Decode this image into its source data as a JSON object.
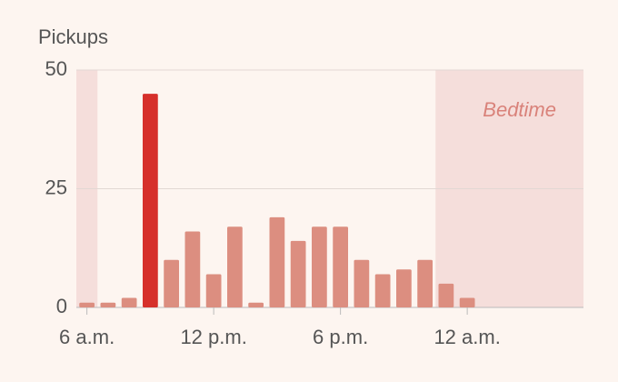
{
  "chart_data": {
    "type": "bar",
    "title": "Pickups",
    "x": [
      6,
      7,
      8,
      9,
      10,
      11,
      12,
      13,
      14,
      15,
      16,
      17,
      18,
      19,
      20,
      21,
      22,
      23,
      24
    ],
    "values": [
      1,
      1,
      2,
      45,
      10,
      16,
      7,
      17,
      1,
      19,
      14,
      17,
      17,
      10,
      7,
      8,
      10,
      5,
      2
    ],
    "colors": [
      "#dc8e80",
      "#dc8e80",
      "#dc8e80",
      "#d6302b",
      "#dc8e80",
      "#dc8e80",
      "#dc8e80",
      "#dc8e80",
      "#dc8e80",
      "#dc8e80",
      "#dc8e80",
      "#dc8e80",
      "#dc8e80",
      "#dc8e80",
      "#dc8e80",
      "#dc8e80",
      "#dc8e80",
      "#dc8e80",
      "#dc8e80"
    ],
    "xlim": [
      5.5,
      29.5
    ],
    "xticks": [
      {
        "value": 6,
        "label": "6 a.m."
      },
      {
        "value": 12,
        "label": "12 p.m."
      },
      {
        "value": 18,
        "label": "6 p.m."
      },
      {
        "value": 24,
        "label": "12 a.m."
      }
    ],
    "ylim": [
      0,
      50
    ],
    "yticks": [
      0,
      25,
      50
    ],
    "grid": true,
    "bands": [
      {
        "x": [
          5.5,
          6.5
        ],
        "color": "#f5dedb"
      },
      {
        "x": [
          22.5,
          29.5
        ],
        "color": "#f5dedb",
        "label": "Bedtime"
      }
    ]
  }
}
